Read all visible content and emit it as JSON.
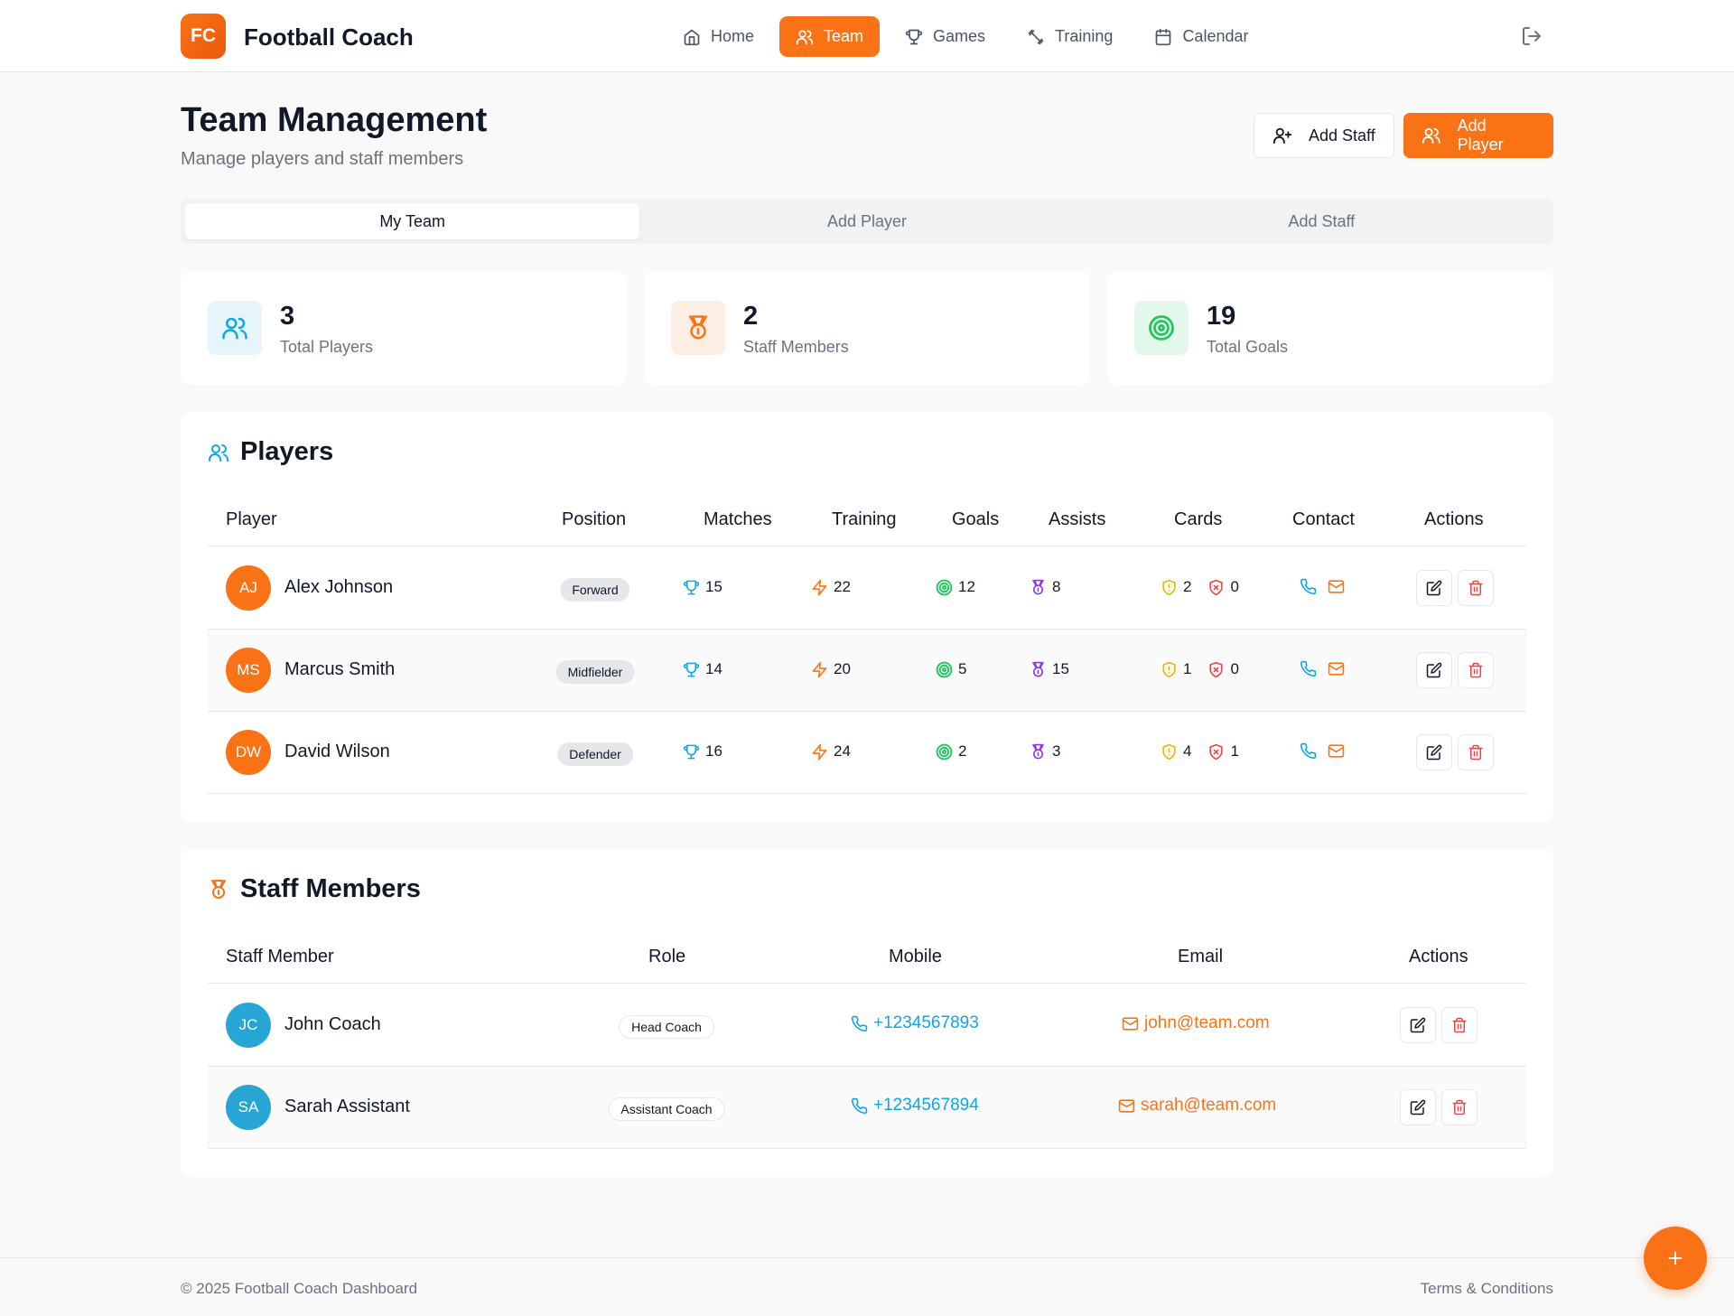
{
  "app": {
    "logo": "FC",
    "title": "Football Coach"
  },
  "nav": [
    {
      "label": "Home",
      "icon": "home-icon"
    },
    {
      "label": "Team",
      "icon": "users-icon",
      "active": true
    },
    {
      "label": "Games",
      "icon": "trophy-icon"
    },
    {
      "label": "Training",
      "icon": "dumbbell-icon"
    },
    {
      "label": "Calendar",
      "icon": "calendar-icon"
    }
  ],
  "page": {
    "title": "Team Management",
    "subtitle": "Manage players and staff members"
  },
  "actions": {
    "add_staff": "Add Staff",
    "add_player": "Add Player"
  },
  "tabs": [
    {
      "label": "My Team",
      "active": true
    },
    {
      "label": "Add Player"
    },
    {
      "label": "Add Staff"
    }
  ],
  "stats": [
    {
      "value": "3",
      "label": "Total Players",
      "icon": "users-icon",
      "color": "#0ea5e9",
      "bg": "#e6f4fb"
    },
    {
      "value": "2",
      "label": "Staff Members",
      "icon": "medal-icon",
      "color": "#f97316",
      "bg": "#fdeee4"
    },
    {
      "value": "19",
      "label": "Total Goals",
      "icon": "target-icon",
      "color": "#22c55e",
      "bg": "#e3f7ea"
    }
  ],
  "players": {
    "title": "Players",
    "columns": [
      "Player",
      "Position",
      "Matches",
      "Training",
      "Goals",
      "Assists",
      "Cards",
      "Contact",
      "Actions"
    ],
    "rows": [
      {
        "initials": "AJ",
        "name": "Alex Johnson",
        "position": "Forward",
        "matches": "15",
        "training": "22",
        "goals": "12",
        "assists": "8",
        "yellow": "2",
        "red": "0"
      },
      {
        "initials": "MS",
        "name": "Marcus Smith",
        "position": "Midfielder",
        "matches": "14",
        "training": "20",
        "goals": "5",
        "assists": "15",
        "yellow": "1",
        "red": "0"
      },
      {
        "initials": "DW",
        "name": "David Wilson",
        "position": "Defender",
        "matches": "16",
        "training": "24",
        "goals": "2",
        "assists": "3",
        "yellow": "4",
        "red": "1"
      }
    ]
  },
  "staff": {
    "title": "Staff Members",
    "columns": [
      "Staff Member",
      "Role",
      "Mobile",
      "Email",
      "Actions"
    ],
    "rows": [
      {
        "initials": "JC",
        "name": "John Coach",
        "role": "Head Coach",
        "mobile": "+1234567893",
        "email": "john@team.com"
      },
      {
        "initials": "SA",
        "name": "Sarah Assistant",
        "role": "Assistant Coach",
        "mobile": "+1234567894",
        "email": "sarah@team.com"
      }
    ]
  },
  "footer": {
    "copyright": "© 2025 Football Coach Dashboard",
    "terms": "Terms & Conditions"
  },
  "colors": {
    "accent": "#f97316",
    "blue": "#0ea5e9",
    "green": "#22c55e",
    "purple": "#9333ea",
    "yellow": "#eab308",
    "red": "#ef4444"
  }
}
